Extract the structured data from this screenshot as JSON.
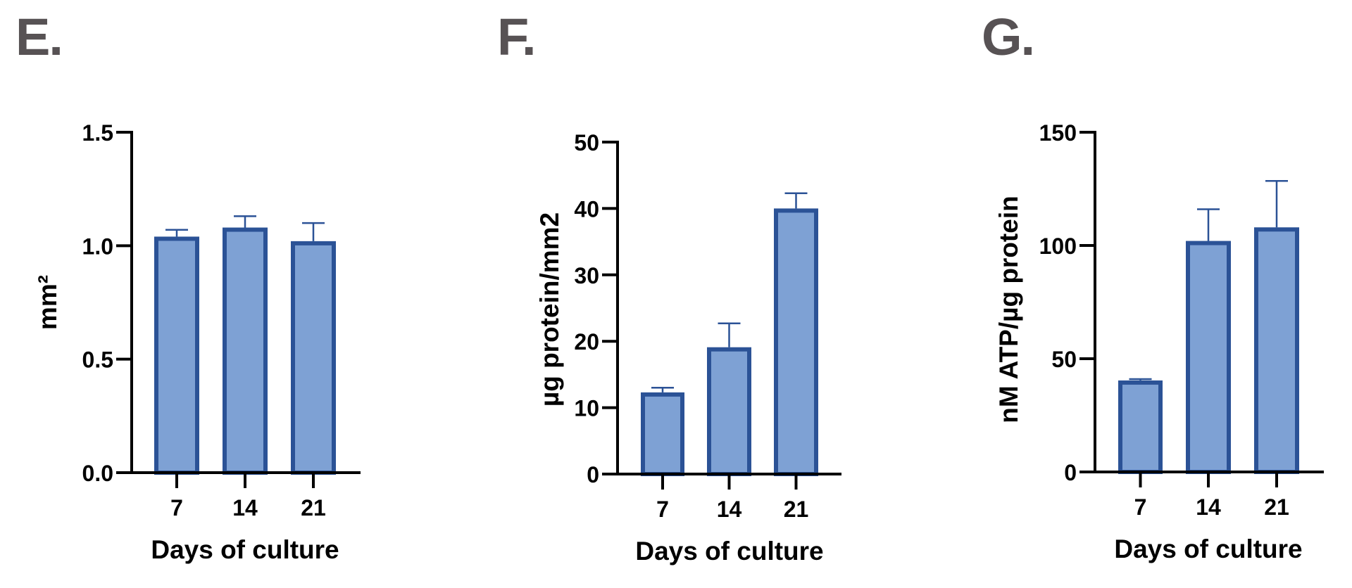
{
  "panels": [
    {
      "letter": "E."
    },
    {
      "letter": "F."
    },
    {
      "letter": "G."
    }
  ],
  "style": {
    "bar_fill": "#7ea1d4",
    "bar_stroke": "#2b5296",
    "error_color": "#2b5296",
    "axis_color": "#000000",
    "letter_color": "#575254"
  },
  "chart_data": [
    {
      "panel": "E.",
      "type": "bar",
      "title": "",
      "xlabel": "Days of culture",
      "ylabel": "mm²",
      "categories": [
        "7",
        "14",
        "21"
      ],
      "values": [
        1.04,
        1.08,
        1.02
      ],
      "error_upper": [
        1.07,
        1.13,
        1.1
      ],
      "ylim": [
        0,
        1.5
      ],
      "yticks": [
        0.0,
        0.5,
        1.0,
        1.5
      ],
      "ytick_labels": [
        "0.0",
        "0.5",
        "1.0",
        "1.5"
      ],
      "grid": false,
      "legend": null
    },
    {
      "panel": "F.",
      "type": "bar",
      "title": "",
      "xlabel": "Days of culture",
      "ylabel": "µg protein/mm2",
      "categories": [
        "7",
        "14",
        "21"
      ],
      "values": [
        12.3,
        19.1,
        40.0
      ],
      "error_upper": [
        13.0,
        22.7,
        42.3
      ],
      "ylim": [
        0,
        50
      ],
      "yticks": [
        0,
        10,
        20,
        30,
        40,
        50
      ],
      "ytick_labels": [
        "0",
        "10",
        "20",
        "30",
        "40",
        "50"
      ],
      "grid": false,
      "legend": null
    },
    {
      "panel": "G.",
      "type": "bar",
      "title": "",
      "xlabel": "Days of culture",
      "ylabel": "nM ATP/µg protein",
      "categories": [
        "7",
        "14",
        "21"
      ],
      "values": [
        40.4,
        102,
        108
      ],
      "error_upper": [
        41.0,
        116,
        128.5
      ],
      "ylim": [
        0,
        150
      ],
      "yticks": [
        0,
        50,
        100,
        150
      ],
      "ytick_labels": [
        "0",
        "50",
        "100",
        "150"
      ],
      "grid": false,
      "legend": null
    }
  ]
}
